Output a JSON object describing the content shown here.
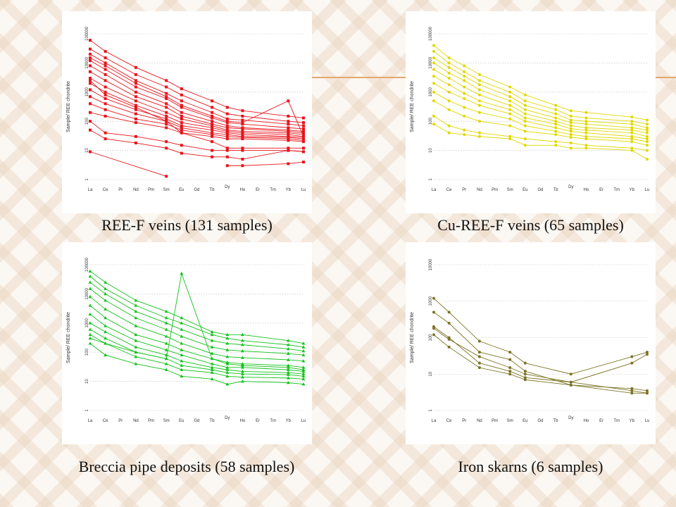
{
  "chart_data": [
    {
      "type": "line",
      "ylabel": "Sample/ REE chondrite",
      "categories": [
        "La",
        "Ce",
        "Pr",
        "Nd",
        "Pm",
        "Sm",
        "Eu",
        "Gd",
        "Tb",
        "Dy",
        "Ho",
        "Er",
        "Tm",
        "Yb",
        "Lu"
      ],
      "y_ticks": [
        "1",
        "10",
        "100",
        "1000",
        "10000",
        "100000"
      ],
      "ylim": [
        1,
        100000
      ],
      "log_scale": true,
      "grid": "horizontal dotted",
      "color": "#e8141b",
      "marker": "square",
      "caption": "REE-F veins (131 samples)",
      "series": [
        {
          "La": 60000,
          "Ce": 25000,
          "Nd": 7000,
          "Sm": 2500,
          "Eu": 1300,
          "Tb": 500,
          "Dy": 300,
          "Ho": 230,
          "Yb": 150,
          "Lu": 130
        },
        {
          "La": 30000,
          "Ce": 15000,
          "Nd": 4000,
          "Sm": 1500,
          "Eu": 800,
          "Tb": 300,
          "Dy": 180,
          "Ho": 150,
          "Yb": 100,
          "Lu": 90
        },
        {
          "La": 20000,
          "Ce": 10000,
          "Nd": 2500,
          "Sm": 900,
          "Eu": 500,
          "Tb": 200,
          "Dy": 120,
          "Ho": 110,
          "Yb": 80,
          "Lu": 70
        },
        {
          "La": 12000,
          "Ce": 6000,
          "Nd": 1500,
          "Sm": 600,
          "Eu": 300,
          "Tb": 130,
          "Dy": 90,
          "Ho": 80,
          "Yb": 60,
          "Lu": 55
        },
        {
          "La": 8000,
          "Ce": 4000,
          "Nd": 1000,
          "Sm": 400,
          "Eu": 200,
          "Tb": 100,
          "Dy": 70,
          "Ho": 60,
          "Yb": 50,
          "Lu": 45
        },
        {
          "La": 5000,
          "Ce": 2500,
          "Nd": 700,
          "Sm": 300,
          "Eu": 150,
          "Tb": 80,
          "Dy": 60,
          "Ho": 55,
          "Yb": 45,
          "Lu": 40
        },
        {
          "La": 3000,
          "Ce": 1500,
          "Nd": 500,
          "Sm": 200,
          "Eu": 120,
          "Tb": 70,
          "Dy": 50,
          "Ho": 45,
          "Yb": 40,
          "Lu": 35
        },
        {
          "La": 2000,
          "Ce": 1000,
          "Nd": 350,
          "Sm": 150,
          "Eu": 90,
          "Tb": 60,
          "Dy": 45,
          "Ho": 40,
          "Yb": 35,
          "Lu": 30
        },
        {
          "La": 1200,
          "Ce": 600,
          "Nd": 250,
          "Sm": 120,
          "Eu": 70,
          "Tb": 50,
          "Dy": 40,
          "Ho": 35,
          "Yb": 30,
          "Lu": 28
        },
        {
          "La": 700,
          "Ce": 400,
          "Nd": 180,
          "Sm": 100,
          "Eu": 60,
          "Tb": 40,
          "Dy": 35,
          "Ho": 30,
          "Yb": 28,
          "Lu": 25
        },
        {
          "La": 400,
          "Ce": 250,
          "Nd": 120,
          "Sm": 80,
          "Eu": 50,
          "Tb": 35,
          "Dy": 30,
          "Ho": 28,
          "Yb": 25,
          "Lu": 22
        },
        {
          "La": 200,
          "Ce": 150,
          "Nd": 90,
          "Sm": 60,
          "Eu": 40,
          "Tb": 30,
          "Dy": 25,
          "Ho": 25,
          "Yb": 22,
          "Lu": 20
        },
        {
          "La": 15000,
          "Ce": 8000,
          "Nd": 2000,
          "Sm": 700,
          "Eu": 350,
          "Tb": 150,
          "Dy": 100,
          "Ho": 90,
          "Yb": 500,
          "Lu": 30
        },
        {
          "La": 2500,
          "Ce": 800,
          "Nd": 300,
          "Sm": 100,
          "Eu": 40,
          "Tb": 20,
          "Dy": 12,
          "Ho": 12,
          "Yb": 12,
          "Lu": 12
        },
        {
          "La": 50,
          "Ce": 25,
          "Nd": 18,
          "Sm": 12,
          "Eu": 8,
          "Tb": 6,
          "Dy": 6,
          "Ho": 5,
          "Yb": 10,
          "Lu": 9
        },
        {
          "La": 100,
          "Ce": 40,
          "Nd": 30,
          "Sm": 20,
          "Eu": 15,
          "Tb": 10,
          "Dy": 10,
          "Ho": 10,
          "Yb": 10,
          "Lu": 9
        },
        {
          "La": 9,
          "Sm": 1.3
        },
        {
          "Dy": 3,
          "Ho": 3,
          "Yb": 3.5,
          "Lu": 4
        }
      ]
    },
    {
      "type": "line",
      "ylabel": "Sample/ REE chondrite",
      "categories": [
        "La",
        "Ce",
        "Pr",
        "Nd",
        "Pm",
        "Sm",
        "Eu",
        "Gd",
        "Tb",
        "Dy",
        "Ho",
        "Er",
        "Tm",
        "Yb",
        "Lu"
      ],
      "y_ticks": [
        "1",
        "10",
        "100",
        "1000",
        "10000",
        "100000"
      ],
      "ylim": [
        1,
        100000
      ],
      "log_scale": true,
      "grid": "horizontal dotted",
      "color": "#e0d800",
      "marker": "circle",
      "caption": "Cu-REE-F veins (65 samples)",
      "series": [
        {
          "La": 40000,
          "Ce": 15000,
          "Pr": 8000,
          "Nd": 4000,
          "Sm": 1500,
          "Eu": 800,
          "Tb": 350,
          "Dy": 230,
          "Ho": 200,
          "Yb": 140,
          "Lu": 110
        },
        {
          "La": 25000,
          "Ce": 10000,
          "Pr": 5000,
          "Nd": 2500,
          "Sm": 1000,
          "Eu": 500,
          "Tb": 250,
          "Dy": 150,
          "Ho": 130,
          "Yb": 100,
          "Lu": 80
        },
        {
          "La": 15000,
          "Ce": 7000,
          "Pr": 3500,
          "Nd": 1800,
          "Sm": 700,
          "Eu": 350,
          "Tb": 180,
          "Dy": 110,
          "Ho": 100,
          "Yb": 80,
          "Lu": 60
        },
        {
          "La": 10000,
          "Ce": 4500,
          "Pr": 2500,
          "Nd": 1200,
          "Sm": 500,
          "Eu": 250,
          "Tb": 130,
          "Dy": 90,
          "Ho": 80,
          "Yb": 60,
          "Lu": 50
        },
        {
          "La": 6000,
          "Ce": 3000,
          "Pr": 1500,
          "Nd": 800,
          "Sm": 350,
          "Eu": 180,
          "Tb": 100,
          "Dy": 70,
          "Ho": 60,
          "Yb": 50,
          "Lu": 40
        },
        {
          "La": 3500,
          "Ce": 1800,
          "Pr": 900,
          "Nd": 500,
          "Sm": 250,
          "Eu": 130,
          "Tb": 80,
          "Dy": 55,
          "Ho": 50,
          "Yb": 40,
          "Lu": 30
        },
        {
          "La": 2000,
          "Ce": 1000,
          "Pr": 600,
          "Nd": 350,
          "Sm": 180,
          "Eu": 100,
          "Tb": 60,
          "Dy": 45,
          "Ho": 40,
          "Yb": 30,
          "Lu": 25
        },
        {
          "La": 1000,
          "Ce": 500,
          "Pr": 300,
          "Nd": 200,
          "Sm": 120,
          "Eu": 70,
          "Tb": 45,
          "Dy": 35,
          "Ho": 30,
          "Yb": 25,
          "Lu": 20
        },
        {
          "La": 500,
          "Ce": 250,
          "Pr": 150,
          "Nd": 100,
          "Sm": 70,
          "Eu": 45,
          "Tb": 35,
          "Dy": 28,
          "Ho": 25,
          "Yb": 20,
          "Lu": 15
        },
        {
          "La": 150,
          "Ce": 70,
          "Pr": 50,
          "Nd": 40,
          "Sm": 30,
          "Eu": 25,
          "Tb": 20,
          "Dy": 18,
          "Ho": 15,
          "Yb": 12,
          "Lu": 10
        },
        {
          "La": 80,
          "Ce": 40,
          "Pr": 35,
          "Nd": 30,
          "Sm": 25,
          "Eu": 15,
          "Tb": 15,
          "Dy": 12,
          "Ho": 12,
          "Yb": 10,
          "Lu": 5
        }
      ]
    },
    {
      "type": "line",
      "ylabel": "Sample/ REE chondrite",
      "categories": [
        "La",
        "Ce",
        "Pr",
        "Nd",
        "Pm",
        "Sm",
        "Eu",
        "Gd",
        "Tb",
        "Dy",
        "Ho",
        "Er",
        "Tm",
        "Yb",
        "Lu"
      ],
      "y_ticks": [
        "1",
        "10",
        "100",
        "1000",
        "10000",
        "100000"
      ],
      "ylim": [
        1,
        100000
      ],
      "log_scale": true,
      "grid": "horizontal dotted",
      "color": "#12c21a",
      "marker": "triangle",
      "caption": "Breccia pipe deposits (58 samples)",
      "series": [
        {
          "La": 60000,
          "Ce": 25000,
          "Nd": 6000,
          "Sm": 2500,
          "Eu": 1500,
          "Tb": 500,
          "Dy": 400,
          "Ho": 400,
          "Yb": 250,
          "Lu": 200
        },
        {
          "La": 40000,
          "Ce": 15000,
          "Nd": 4000,
          "Sm": 1500,
          "Eu": 1000,
          "Tb": 400,
          "Dy": 300,
          "Ho": 250,
          "Yb": 180,
          "Lu": 150
        },
        {
          "La": 25000,
          "Ce": 10000,
          "Nd": 2500,
          "Sm": 1000,
          "Eu": 600,
          "Tb": 250,
          "Dy": 200,
          "Ho": 180,
          "Yb": 130,
          "Lu": 110
        },
        {
          "La": 15000,
          "Ce": 6000,
          "Nd": 1500,
          "Sm": 600,
          "Eu": 350,
          "Tb": 150,
          "Dy": 120,
          "Ho": 110,
          "Yb": 90,
          "Lu": 80
        },
        {
          "La": 8000,
          "Ce": 3000,
          "Nd": 800,
          "Sm": 350,
          "Eu": 200,
          "Tb": 90,
          "Dy": 70,
          "Ho": 65,
          "Yb": 55,
          "Lu": 50
        },
        {
          "La": 4000,
          "Ce": 1500,
          "Nd": 400,
          "Sm": 200,
          "Eu": 120,
          "Tb": 60,
          "Dy": 45,
          "Ho": 40,
          "Yb": 35,
          "Lu": 30
        },
        {
          "La": 2000,
          "Ce": 800,
          "Nd": 250,
          "Sm": 120,
          "Eu": 80,
          "Tb": 40,
          "Dy": 30,
          "Ho": 30,
          "Yb": 25,
          "Lu": 22
        },
        {
          "La": 1000,
          "Ce": 500,
          "Nd": 150,
          "Sm": 80,
          "Eu": 50,
          "Tb": 30,
          "Dy": 25,
          "Ho": 22,
          "Yb": 20,
          "Lu": 18
        },
        {
          "La": 600,
          "Ce": 300,
          "Nd": 100,
          "Sm": 60,
          "Eu": 35,
          "Tb": 25,
          "Dy": 20,
          "Ho": 18,
          "Yb": 17,
          "Lu": 15
        },
        {
          "La": 400,
          "Ce": 200,
          "Nd": 70,
          "Sm": 40,
          "Eu": 25,
          "Tb": 20,
          "Dy": 15,
          "Ho": 14,
          "Yb": 13,
          "Lu": 12
        },
        {
          "La": 200,
          "Ce": 80,
          "Nd": 40,
          "Sm": 25,
          "Eu": 15,
          "Tb": 12,
          "Dy": 8,
          "Ho": 10,
          "Yb": 9,
          "Lu": 8
        },
        {
          "La": 300,
          "Ce": 200,
          "Nd": 100,
          "Sm": 60,
          "Eu": 50000,
          "Tb": 60,
          "Dy": 40,
          "Ho": 35,
          "Yb": 30,
          "Lu": 25
        }
      ]
    },
    {
      "type": "line",
      "ylabel": "Sample/ REE chondrite",
      "categories": [
        "La",
        "Ce",
        "Pr",
        "Nd",
        "Pm",
        "Sm",
        "Eu",
        "Gd",
        "Tb",
        "Dy",
        "Ho",
        "Er",
        "Tm",
        "Yb",
        "Lu"
      ],
      "y_ticks": [
        "1",
        "10",
        "100",
        "1000",
        "10000"
      ],
      "ylim": [
        1,
        10000
      ],
      "log_scale": true,
      "grid": "horizontal dotted",
      "color": "#7a7424",
      "marker": "circle",
      "caption": "Iron skarns (6 samples)",
      "series": [
        {
          "La": 1200,
          "Ce": 500,
          "Nd": 80,
          "Sm": 40,
          "Eu": 20,
          "Dy": 10,
          "Yb": 30,
          "Lu": 40
        },
        {
          "La": 500,
          "Ce": 250,
          "Nd": 40,
          "Sm": 25,
          "Eu": 12,
          "Dy": 5,
          "Yb": 3,
          "Lu": 3
        },
        {
          "La": 200,
          "Ce": 100,
          "Nd": 20,
          "Sm": 12,
          "Eu": 8,
          "Dy": 6,
          "Yb": 20,
          "Lu": 35
        },
        {
          "La": 120,
          "Ce": 55,
          "Nd": 15,
          "Sm": 10,
          "Eu": 7,
          "Dy": 5,
          "Yb": 4,
          "Lu": 3.5
        },
        {
          "La": 180,
          "Ce": 90,
          "Nd": 30,
          "Sm": 15,
          "Eu": 10,
          "Dy": 6,
          "Yb": 3.5,
          "Lu": 3
        }
      ]
    }
  ]
}
